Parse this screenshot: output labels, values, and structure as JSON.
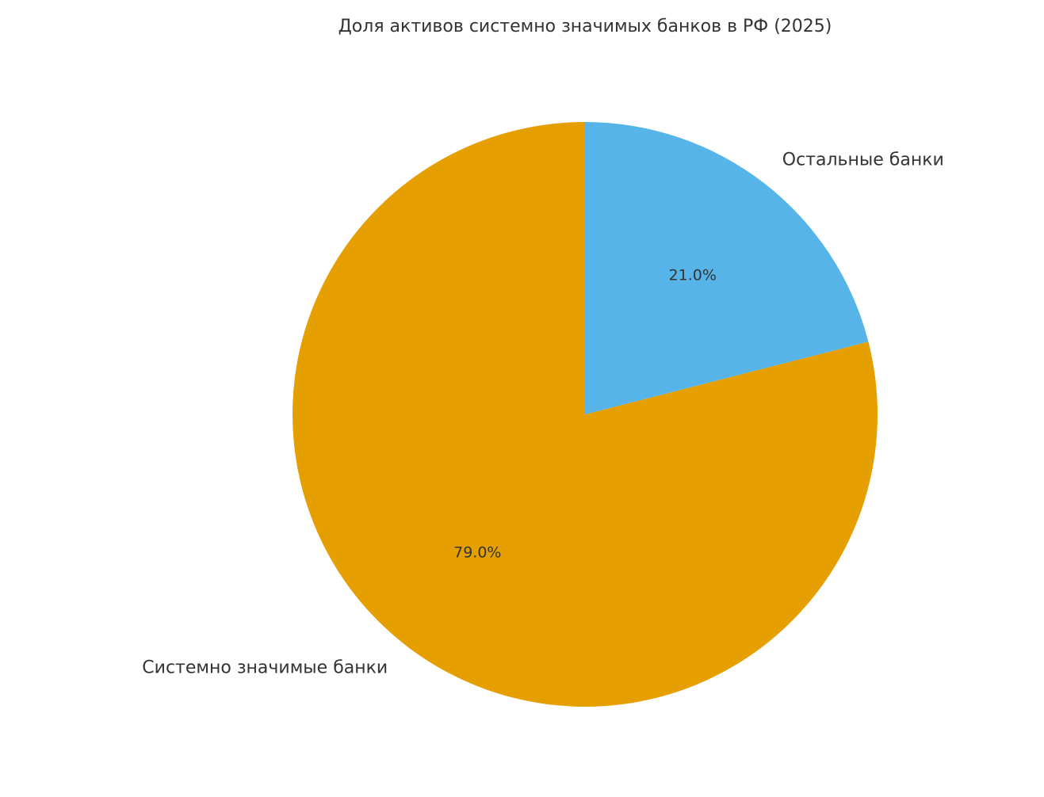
{
  "chart_data": {
    "type": "pie",
    "title": "Доля активов системно значимых банков в РФ (2025)",
    "categories": [
      "Системно значимые банки",
      "Остальные банки"
    ],
    "values": [
      79,
      21
    ],
    "value_labels": [
      "79.0%",
      "21.0%"
    ],
    "colors": [
      "#e69f00",
      "#56b4e9"
    ]
  }
}
